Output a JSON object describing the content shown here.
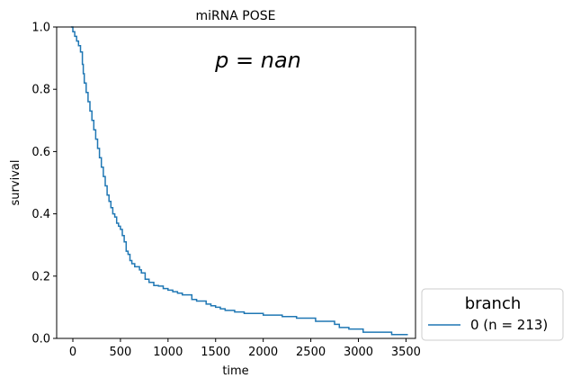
{
  "chart_data": {
    "type": "line",
    "step": true,
    "title": "miRNA POSE",
    "xlabel": "time",
    "ylabel": "survival",
    "xlim": [
      -170,
      3600
    ],
    "ylim": [
      0.0,
      1.0
    ],
    "xticks": [
      0,
      500,
      1000,
      1500,
      2000,
      2500,
      3000,
      3500
    ],
    "yticks": [
      0.0,
      0.2,
      0.4,
      0.6,
      0.8,
      1.0
    ],
    "xtick_labels": [
      "0",
      "500",
      "1000",
      "1500",
      "2000",
      "2500",
      "3000",
      "3500"
    ],
    "ytick_labels": [
      "0.0",
      "0.2",
      "0.4",
      "0.6",
      "0.8",
      "1.0"
    ],
    "annotation": {
      "text": "p = nan"
    },
    "grid": false,
    "legend": {
      "title": "branch",
      "placement": "outside-lower-right"
    },
    "series": [
      {
        "name": "0 (n = 213)",
        "color": "#1f77b4",
        "x": [
          -20,
          0,
          20,
          40,
          60,
          80,
          100,
          110,
          120,
          140,
          160,
          180,
          200,
          220,
          240,
          260,
          280,
          300,
          320,
          340,
          360,
          380,
          400,
          420,
          440,
          460,
          480,
          500,
          520,
          540,
          560,
          580,
          600,
          620,
          650,
          700,
          720,
          760,
          800,
          850,
          900,
          950,
          1000,
          1050,
          1100,
          1150,
          1250,
          1300,
          1400,
          1450,
          1500,
          1550,
          1600,
          1700,
          1800,
          2000,
          2200,
          2350,
          2550,
          2750,
          2800,
          2900,
          3050,
          3350,
          3520
        ],
        "y": [
          1.0,
          0.985,
          0.97,
          0.955,
          0.94,
          0.92,
          0.88,
          0.85,
          0.82,
          0.79,
          0.76,
          0.73,
          0.7,
          0.67,
          0.64,
          0.61,
          0.58,
          0.55,
          0.52,
          0.49,
          0.46,
          0.44,
          0.42,
          0.4,
          0.39,
          0.37,
          0.36,
          0.35,
          0.33,
          0.31,
          0.28,
          0.27,
          0.25,
          0.24,
          0.23,
          0.22,
          0.21,
          0.19,
          0.18,
          0.17,
          0.168,
          0.16,
          0.155,
          0.15,
          0.145,
          0.14,
          0.125,
          0.12,
          0.11,
          0.105,
          0.1,
          0.095,
          0.09,
          0.085,
          0.08,
          0.075,
          0.07,
          0.065,
          0.055,
          0.045,
          0.035,
          0.03,
          0.02,
          0.012,
          0.012
        ]
      }
    ]
  }
}
